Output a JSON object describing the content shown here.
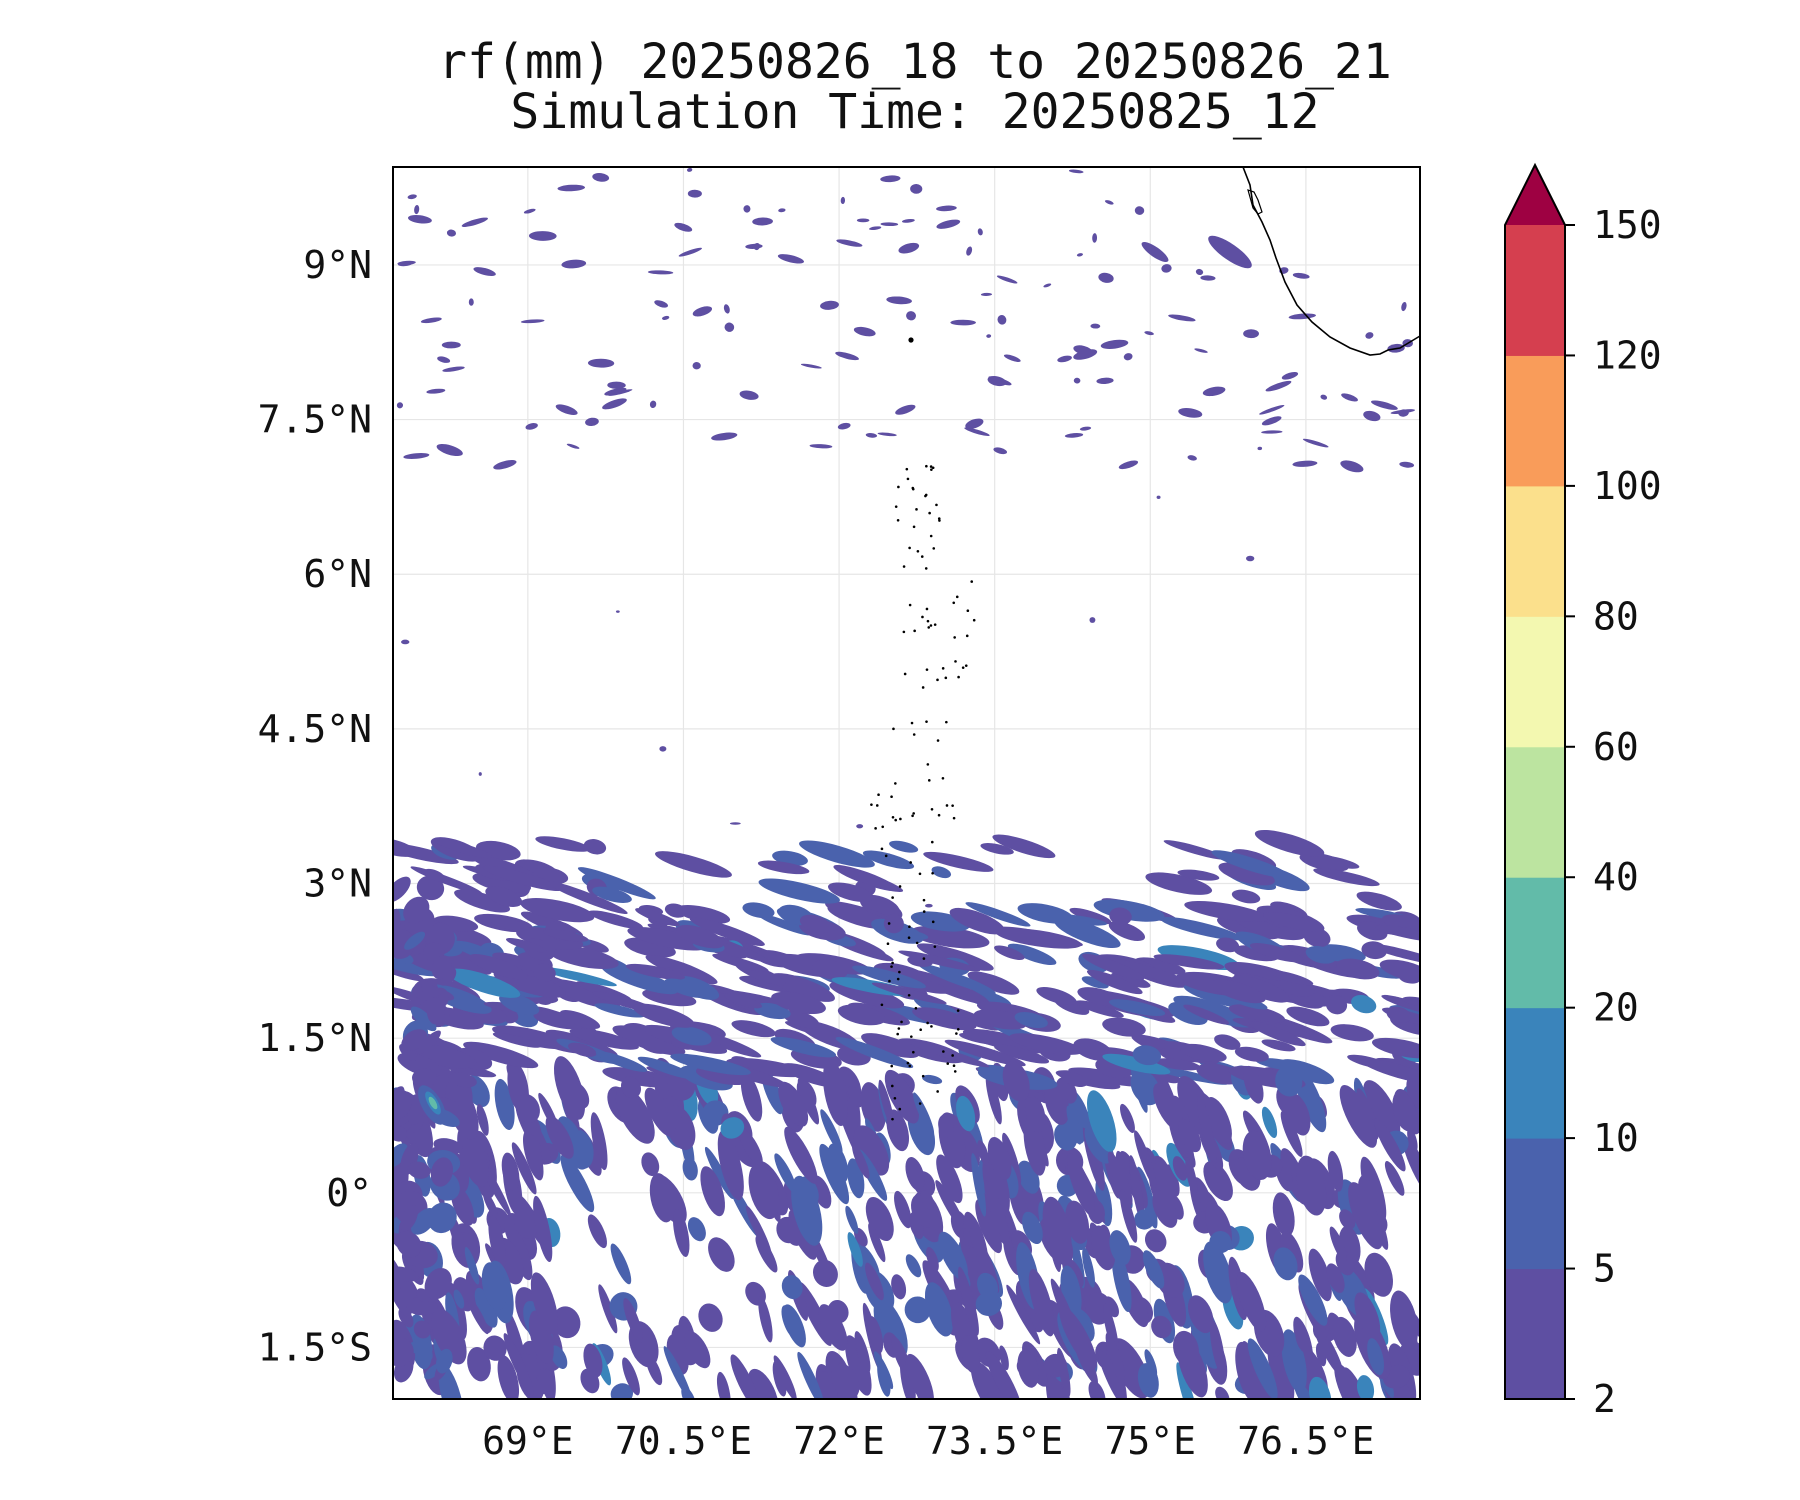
{
  "title": {
    "line1": "rf(mm) 20250826_18 to 20250826_21",
    "line2": "Simulation Time: 20250825_12"
  },
  "map": {
    "extent": {
      "lon": [
        67.7,
        77.6
      ],
      "lat": [
        -2.0,
        9.95
      ]
    },
    "lon_ticks": [
      {
        "value": 69.0,
        "label": "69°E"
      },
      {
        "value": 70.5,
        "label": "70.5°E"
      },
      {
        "value": 72.0,
        "label": "72°E"
      },
      {
        "value": 73.5,
        "label": "73.5°E"
      },
      {
        "value": 75.0,
        "label": "75°E"
      },
      {
        "value": 76.5,
        "label": "76.5°E"
      }
    ],
    "lat_ticks": [
      {
        "value": 9.0,
        "label": "9°N"
      },
      {
        "value": 7.5,
        "label": "7.5°N"
      },
      {
        "value": 6.0,
        "label": "6°N"
      },
      {
        "value": 4.5,
        "label": "4.5°N"
      },
      {
        "value": 3.0,
        "label": "3°N"
      },
      {
        "value": 1.5,
        "label": "1.5°N"
      },
      {
        "value": 0.0,
        "label": "0°"
      },
      {
        "value": -1.5,
        "label": "1.5°S"
      }
    ],
    "gridlines": true,
    "rain_band_north_edge_lat": 3.4
  },
  "colorbar": {
    "levels": [
      2,
      5,
      10,
      20,
      40,
      60,
      80,
      100,
      120,
      150
    ],
    "tick_labels": [
      "2",
      "5",
      "10",
      "20",
      "40",
      "60",
      "80",
      "100",
      "120",
      "150"
    ],
    "colors": [
      "#5e4fa2",
      "#4a62ad",
      "#3a84bb",
      "#62bba9",
      "#bce4a0",
      "#f3f8b0",
      "#fbe08c",
      "#f99c5a",
      "#d53f4f"
    ],
    "extend_max_color": "#9e0142",
    "extend": "max"
  }
}
